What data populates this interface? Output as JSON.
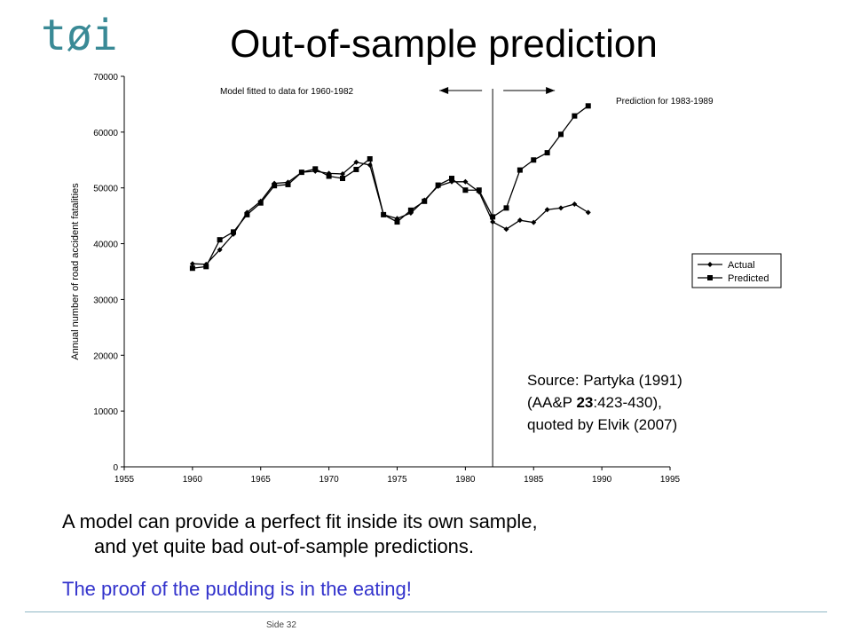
{
  "slide": {
    "title": "Out-of-sample prediction",
    "logo_text": "tøi",
    "source_lines": [
      "Source: Partyka (1991)",
      "(AA&P ",
      "23",
      ":423-430),",
      "quoted by Elvik (2007)"
    ],
    "body_line1": "A model can provide a perfect fit inside its own sample,",
    "body_line2": "and yet quite bad out-of-sample predictions.",
    "tagline": "The proof of the pudding is in the eating!",
    "page_label": "Side 32",
    "colors": {
      "logo": "#3a8a96",
      "tagline": "#3333cc",
      "footer_line": "#8fb8c4"
    }
  },
  "chart_data": {
    "type": "line",
    "ylabel": "Annual number of road accident fatalities",
    "xlabel": "",
    "xlim": [
      1955,
      1995
    ],
    "ylim": [
      0,
      70000
    ],
    "xticks": [
      1955,
      1960,
      1965,
      1970,
      1975,
      1980,
      1985,
      1990,
      1995
    ],
    "yticks": [
      0,
      10000,
      20000,
      30000,
      40000,
      50000,
      60000,
      70000
    ],
    "grid": false,
    "legend_position": "right",
    "annotations": {
      "fitted": "Model fitted to data for 1960-1982",
      "prediction": "Prediction for 1983-1989",
      "divider_year": 1982
    },
    "x": [
      1960,
      1961,
      1962,
      1963,
      1964,
      1965,
      1966,
      1967,
      1968,
      1969,
      1970,
      1971,
      1972,
      1973,
      1974,
      1975,
      1976,
      1977,
      1978,
      1979,
      1980,
      1981,
      1982,
      1983,
      1984,
      1985,
      1986,
      1987,
      1988,
      1989
    ],
    "series": [
      {
        "name": "Actual",
        "marker": "diamond",
        "values": [
          36400,
          36300,
          38900,
          41700,
          45600,
          47600,
          50800,
          51000,
          52800,
          53000,
          52600,
          52500,
          54600,
          54100,
          45200,
          44500,
          45500,
          47800,
          50300,
          51100,
          51100,
          49300,
          43900,
          42600,
          44200,
          43800,
          46100,
          46400,
          47100,
          45600
        ]
      },
      {
        "name": "Predicted",
        "marker": "square",
        "values": [
          35600,
          35900,
          40700,
          42100,
          45200,
          47300,
          50400,
          50600,
          52800,
          53400,
          52100,
          51700,
          53300,
          55200,
          45200,
          43900,
          46000,
          47600,
          50500,
          51700,
          49600,
          49600,
          44800,
          46400,
          53200,
          55000,
          56300,
          59600,
          62900,
          64700
        ]
      }
    ]
  }
}
